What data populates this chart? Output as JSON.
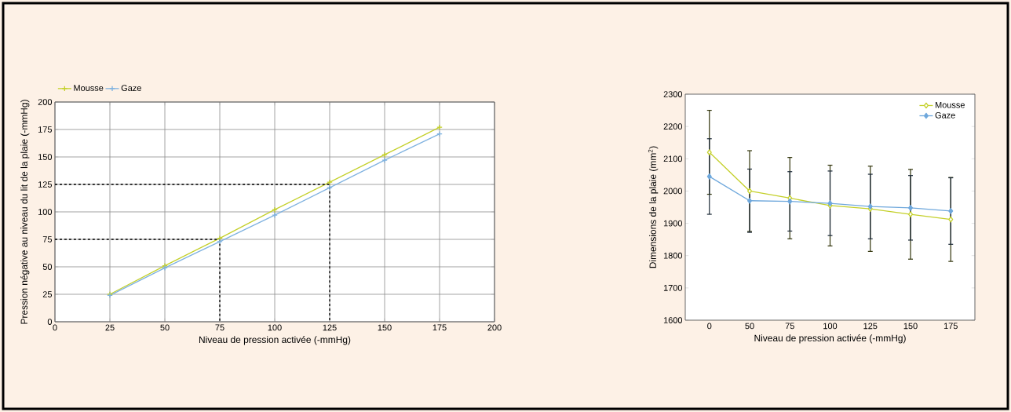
{
  "chart_data": [
    {
      "type": "line",
      "xlabel": "Niveau de pression activée (-mmHg)",
      "ylabel": "Pression négative au niveau du lit de la plaie (-mmHg)",
      "x": [
        25,
        50,
        75,
        100,
        125,
        150,
        175
      ],
      "series": [
        {
          "name": "Mousse",
          "color": "#c4d02a",
          "values": [
            25,
            51,
            76,
            102,
            127,
            152,
            177
          ]
        },
        {
          "name": "Gaze",
          "color": "#7fb2e0",
          "values": [
            24,
            49,
            73,
            97,
            122,
            147,
            171
          ]
        },
        {
          "type": "line",
          "color": "#000000",
          "line_style": "dashed",
          "marker": "none",
          "x": [
            0,
            75,
            75
          ],
          "values": [
            75,
            75,
            0
          ]
        },
        {
          "type": "line",
          "color": "#000000",
          "line_style": "dashed",
          "marker": "none",
          "x": [
            0,
            125,
            125
          ],
          "values": [
            125,
            125,
            0
          ]
        }
      ],
      "xlim": [
        0,
        200
      ],
      "ylim": [
        0,
        200
      ],
      "xticks": [
        0,
        25,
        50,
        75,
        100,
        125,
        150,
        175,
        200
      ],
      "yticks": [
        0,
        25,
        50,
        75,
        100,
        125,
        150,
        175,
        200
      ],
      "grid": true,
      "legend": "top left",
      "marker": "cross",
      "line_style": "solid"
    },
    {
      "type": "line",
      "xlabel": "Niveau de pression activée (-mmHg)",
      "ylabel": "Dimensions de la plaie (mm$^{2}$)",
      "categories": [
        "0",
        "50",
        "75",
        "100",
        "125",
        "150",
        "175"
      ],
      "series": [
        {
          "name": "Mousse",
          "color": "#c4d02a",
          "values": [
            2120,
            2000,
            1978,
            1955,
            1945,
            1928,
            1912
          ],
          "errors": [
            130,
            125,
            126,
            125,
            132,
            139,
            130
          ]
        },
        {
          "name": "Gaze",
          "color": "#6fa8dc",
          "values": [
            2045,
            1970,
            1968,
            1962,
            1952,
            1948,
            1938
          ],
          "errors": [
            117,
            98,
            92,
            100,
            100,
            100,
            103
          ]
        }
      ],
      "ylim": [
        1600,
        2300
      ],
      "yticks": [
        1600,
        1700,
        1800,
        1900,
        2000,
        2100,
        2200,
        2300
      ],
      "grid": false,
      "legend": "top right",
      "marker": "diamond",
      "line_style": "solid"
    }
  ]
}
